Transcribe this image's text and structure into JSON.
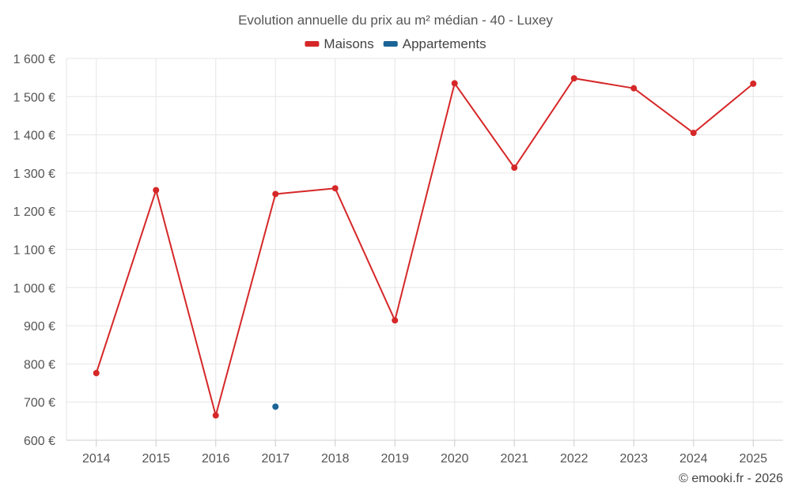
{
  "chart_data": {
    "type": "line",
    "title": "Evolution annuelle du prix au m² médian - 40 - Luxey",
    "xlabel": "",
    "ylabel": "",
    "x": [
      "2014",
      "2015",
      "2016",
      "2017",
      "2018",
      "2019",
      "2020",
      "2021",
      "2022",
      "2023",
      "2024",
      "2025"
    ],
    "ylim": [
      600,
      1600
    ],
    "yticks": [
      600,
      700,
      800,
      900,
      1000,
      1100,
      1200,
      1300,
      1400,
      1500,
      1600
    ],
    "ytick_labels": [
      "600 €",
      "700 €",
      "800 €",
      "900 €",
      "1 000 €",
      "1 100 €",
      "1 200 €",
      "1 300 €",
      "1 400 €",
      "1 500 €",
      "1 600 €"
    ],
    "grid": true,
    "legend_position": "top-center",
    "series": [
      {
        "name": "Maisons",
        "color": "#d62728",
        "values": [
          776,
          1255,
          665,
          1245,
          1260,
          914,
          1535,
          1314,
          1548,
          1522,
          1405,
          1534
        ]
      },
      {
        "name": "Appartements",
        "color": "#1a6496",
        "values": [
          null,
          null,
          null,
          688,
          null,
          null,
          null,
          null,
          null,
          null,
          null,
          null
        ]
      }
    ]
  },
  "credit": "© emooki.fr - 2026"
}
